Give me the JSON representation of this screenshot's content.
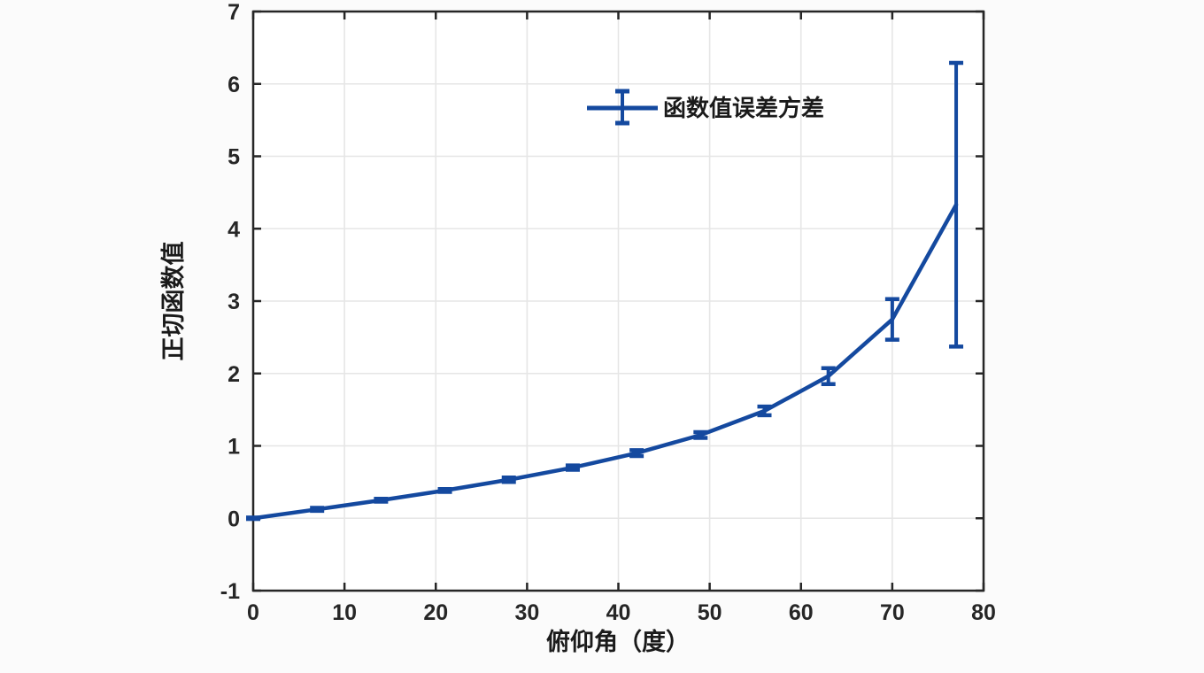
{
  "figure": {
    "kind": "MATLAB-style errorbar plot",
    "title": ""
  },
  "chart_data": {
    "type": "line",
    "subtype": "errorbar",
    "x": [
      0,
      7,
      14,
      21,
      28,
      35,
      42,
      49,
      56,
      63,
      70,
      77
    ],
    "y": [
      0,
      0.123,
      0.249,
      0.384,
      0.532,
      0.7,
      0.9,
      1.15,
      1.483,
      1.963,
      2.747,
      4.331
    ],
    "yerr": [
      0.01,
      0.02,
      0.02,
      0.02,
      0.03,
      0.03,
      0.04,
      0.04,
      0.06,
      0.11,
      0.28,
      1.96
    ],
    "title": "",
    "xlabel": "俯仰角（度）",
    "ylabel": "正切函数值",
    "xlim": [
      0,
      80
    ],
    "ylim": [
      -1,
      7
    ],
    "xticks": [
      0,
      10,
      20,
      30,
      40,
      50,
      60,
      70,
      80
    ],
    "yticks": [
      -1,
      0,
      1,
      2,
      3,
      4,
      5,
      6,
      7
    ],
    "grid": true,
    "box": true,
    "legend": [
      {
        "label": "函数值误差方差",
        "marker": "errorbar-line"
      }
    ],
    "legend_position": "upper center, no box",
    "colors": {
      "line": "#14499f",
      "axis": "#262626",
      "grid": "#e6e6e6",
      "plot_background": "#ffffff",
      "page_background": "#fbfbfb"
    }
  }
}
